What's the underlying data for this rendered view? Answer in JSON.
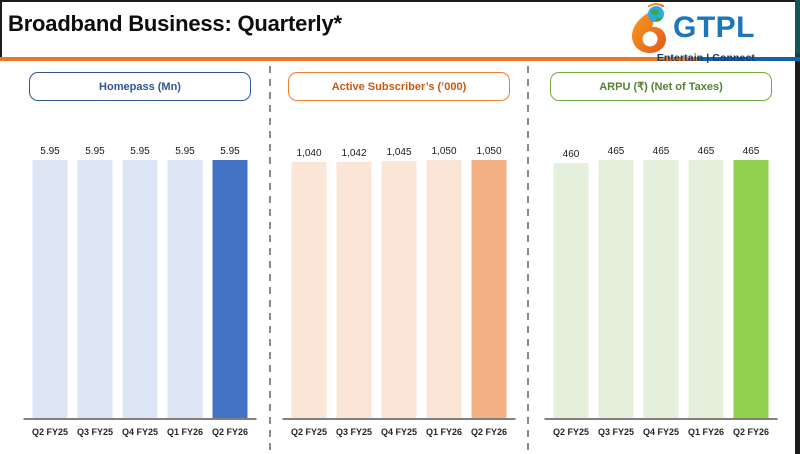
{
  "page": {
    "title": "Broadband Business: Quarterly*"
  },
  "logo": {
    "brand": "GTPL",
    "tagline": "Entertain | Connect",
    "colors": {
      "brand_blue": "#1B76BC",
      "tagline_navy": "#1E3A66",
      "swirl_orange_light": "#F9A01B",
      "swirl_orange_dark": "#E05A1B",
      "globe_blue": "#2BA9E0",
      "globe_green": "#3DA63C"
    }
  },
  "colors": {
    "divider_orange": "#E87728",
    "divider_blue": "#1460AA",
    "edge_dark": "#1C1C1C",
    "edge_teal": "#14555C",
    "axis_gray": "#808080",
    "dash_gray": "#8A8A8A"
  },
  "chart_data": [
    {
      "type": "bar",
      "title": "Homepass (Mn)",
      "categories": [
        "Q2 FY25",
        "Q3 FY25",
        "Q4 FY25",
        "Q1 FY26",
        "Q2 FY26"
      ],
      "values": [
        5.95,
        5.95,
        5.95,
        5.95,
        5.95
      ],
      "value_labels": [
        "5.95",
        "5.95",
        "5.95",
        "5.95",
        "5.95"
      ],
      "ylim": [
        0,
        5.95
      ],
      "xlabel": "",
      "ylabel": "",
      "grid": false,
      "legend": "none",
      "highlight_index": 4,
      "colors": {
        "bar": "#DCE5F4",
        "highlight": "#4472C4",
        "title": "#2F5597",
        "border": "#2F5597"
      }
    },
    {
      "type": "bar",
      "title": "Active Subscriber’s (’000)",
      "categories": [
        "Q2 FY25",
        "Q3 FY25",
        "Q4 FY25",
        "Q1 FY26",
        "Q2 FY26"
      ],
      "values": [
        1040,
        1042,
        1045,
        1050,
        1050
      ],
      "value_labels": [
        "1,040",
        "1,042",
        "1,045",
        "1,050",
        "1,050"
      ],
      "ylim": [
        0,
        1050
      ],
      "xlabel": "",
      "ylabel": "",
      "grid": false,
      "legend": "none",
      "highlight_index": 4,
      "colors": {
        "bar": "#FBE5D6",
        "highlight": "#F4B183",
        "title": "#C55A11",
        "border": "#ED7D31"
      }
    },
    {
      "type": "bar",
      "title": "ARPU (₹) (Net of Taxes)",
      "categories": [
        "Q2 FY25",
        "Q3 FY25",
        "Q4 FY25",
        "Q1 FY26",
        "Q2 FY26"
      ],
      "values": [
        460,
        465,
        465,
        465,
        465
      ],
      "value_labels": [
        "460",
        "465",
        "465",
        "465",
        "465"
      ],
      "ylim": [
        0,
        465
      ],
      "xlabel": "",
      "ylabel": "",
      "grid": false,
      "legend": "none",
      "highlight_index": 4,
      "colors": {
        "bar": "#E4F0DC",
        "highlight": "#92D050",
        "title": "#538135",
        "border": "#70AD47"
      }
    }
  ]
}
